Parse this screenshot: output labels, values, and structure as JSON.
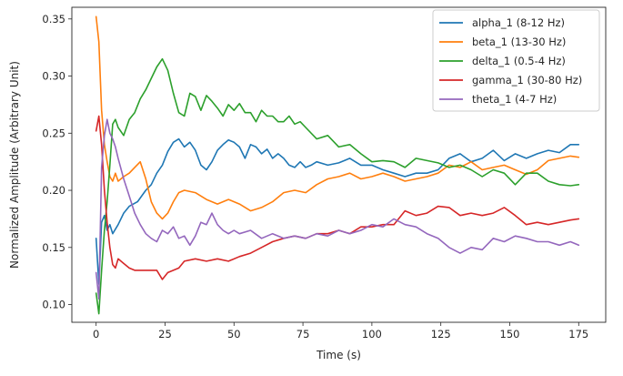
{
  "chart_data": {
    "type": "line",
    "title": "",
    "xlabel": "Time (s)",
    "ylabel": "Normalized Amplitude (Arbitrary Unit)",
    "xlim": [
      -8.8,
      184.8
    ],
    "ylim": [
      0.0845,
      0.3602
    ],
    "xticks": [
      0,
      25,
      50,
      75,
      100,
      125,
      150,
      175
    ],
    "yticks": [
      0.1,
      0.15,
      0.2,
      0.25,
      0.3,
      0.35
    ],
    "xtick_labels": [
      "0",
      "25",
      "50",
      "75",
      "100",
      "125",
      "150",
      "175"
    ],
    "ytick_labels": [
      "0.10",
      "0.15",
      "0.20",
      "0.25",
      "0.30",
      "0.35"
    ],
    "grid": false,
    "legend_position": "top-right",
    "series": [
      {
        "name": "alpha_1 (8-12 Hz)",
        "color": "#1f77b4",
        "x": [
          0,
          1,
          2,
          3,
          4,
          5,
          6,
          8,
          10,
          12,
          15,
          18,
          20,
          22,
          24,
          26,
          28,
          30,
          32,
          34,
          36,
          38,
          40,
          42,
          44,
          46,
          48,
          50,
          52,
          54,
          56,
          58,
          60,
          62,
          64,
          66,
          68,
          70,
          72,
          74,
          76,
          78,
          80,
          84,
          88,
          92,
          96,
          100,
          104,
          108,
          112,
          116,
          120,
          124,
          128,
          132,
          136,
          140,
          144,
          148,
          152,
          156,
          160,
          164,
          168,
          172,
          175
        ],
        "y": [
          0.158,
          0.118,
          0.172,
          0.178,
          0.165,
          0.17,
          0.162,
          0.17,
          0.18,
          0.186,
          0.19,
          0.2,
          0.205,
          0.215,
          0.222,
          0.234,
          0.242,
          0.245,
          0.238,
          0.242,
          0.235,
          0.222,
          0.218,
          0.225,
          0.235,
          0.24,
          0.244,
          0.242,
          0.238,
          0.228,
          0.24,
          0.238,
          0.232,
          0.236,
          0.228,
          0.232,
          0.228,
          0.222,
          0.22,
          0.225,
          0.22,
          0.222,
          0.225,
          0.222,
          0.224,
          0.228,
          0.222,
          0.222,
          0.218,
          0.215,
          0.212,
          0.215,
          0.215,
          0.218,
          0.228,
          0.232,
          0.225,
          0.228,
          0.235,
          0.226,
          0.232,
          0.228,
          0.232,
          0.235,
          0.233,
          0.24,
          0.24
        ]
      },
      {
        "name": "beta_1 (13-30 Hz)",
        "color": "#ff7f0e",
        "x": [
          0,
          1,
          2,
          3,
          4,
          5,
          6,
          7,
          8,
          10,
          12,
          14,
          16,
          18,
          20,
          22,
          24,
          26,
          28,
          30,
          32,
          36,
          40,
          44,
          48,
          52,
          56,
          60,
          64,
          68,
          72,
          76,
          80,
          84,
          88,
          92,
          96,
          100,
          104,
          108,
          112,
          116,
          120,
          124,
          128,
          132,
          136,
          140,
          144,
          148,
          152,
          156,
          160,
          164,
          168,
          172,
          175
        ],
        "y": [
          0.352,
          0.33,
          0.27,
          0.24,
          0.225,
          0.212,
          0.208,
          0.215,
          0.208,
          0.212,
          0.215,
          0.22,
          0.225,
          0.21,
          0.19,
          0.18,
          0.175,
          0.18,
          0.19,
          0.198,
          0.2,
          0.198,
          0.192,
          0.188,
          0.192,
          0.188,
          0.182,
          0.185,
          0.19,
          0.198,
          0.2,
          0.198,
          0.205,
          0.21,
          0.212,
          0.215,
          0.21,
          0.212,
          0.215,
          0.212,
          0.208,
          0.21,
          0.212,
          0.215,
          0.222,
          0.22,
          0.225,
          0.218,
          0.22,
          0.222,
          0.218,
          0.214,
          0.218,
          0.226,
          0.228,
          0.23,
          0.229
        ]
      },
      {
        "name": "delta_1 (0.5-4 Hz)",
        "color": "#2ca02c",
        "x": [
          0,
          1,
          2,
          3,
          4,
          5,
          6,
          7,
          8,
          10,
          12,
          14,
          16,
          18,
          20,
          22,
          24,
          26,
          28,
          30,
          32,
          34,
          36,
          38,
          40,
          42,
          44,
          46,
          48,
          50,
          52,
          54,
          56,
          58,
          60,
          62,
          64,
          66,
          68,
          70,
          72,
          74,
          76,
          80,
          84,
          88,
          92,
          96,
          100,
          104,
          108,
          112,
          116,
          120,
          124,
          128,
          132,
          136,
          140,
          144,
          148,
          152,
          156,
          160,
          164,
          168,
          172,
          175
        ],
        "y": [
          0.11,
          0.092,
          0.13,
          0.165,
          0.19,
          0.222,
          0.258,
          0.262,
          0.255,
          0.248,
          0.262,
          0.268,
          0.28,
          0.288,
          0.298,
          0.308,
          0.315,
          0.305,
          0.285,
          0.268,
          0.265,
          0.285,
          0.282,
          0.27,
          0.283,
          0.278,
          0.272,
          0.265,
          0.275,
          0.27,
          0.276,
          0.268,
          0.268,
          0.26,
          0.27,
          0.265,
          0.265,
          0.26,
          0.26,
          0.265,
          0.258,
          0.26,
          0.255,
          0.245,
          0.248,
          0.238,
          0.24,
          0.232,
          0.225,
          0.226,
          0.225,
          0.22,
          0.228,
          0.226,
          0.224,
          0.22,
          0.222,
          0.218,
          0.212,
          0.218,
          0.215,
          0.205,
          0.215,
          0.215,
          0.208,
          0.205,
          0.204,
          0.205
        ]
      },
      {
        "name": "gamma_1 (30-80 Hz)",
        "color": "#d62728",
        "x": [
          0,
          1,
          2,
          3,
          4,
          5,
          6,
          7,
          8,
          10,
          12,
          14,
          16,
          18,
          20,
          22,
          24,
          26,
          28,
          30,
          32,
          36,
          40,
          44,
          48,
          52,
          56,
          60,
          64,
          68,
          72,
          76,
          80,
          84,
          88,
          92,
          96,
          100,
          104,
          108,
          112,
          116,
          120,
          124,
          128,
          132,
          136,
          140,
          144,
          148,
          152,
          156,
          160,
          164,
          168,
          172,
          175
        ],
        "y": [
          0.252,
          0.265,
          0.24,
          0.2,
          0.172,
          0.15,
          0.135,
          0.132,
          0.14,
          0.136,
          0.132,
          0.13,
          0.13,
          0.13,
          0.13,
          0.13,
          0.122,
          0.128,
          0.13,
          0.132,
          0.138,
          0.14,
          0.138,
          0.14,
          0.138,
          0.142,
          0.145,
          0.15,
          0.155,
          0.158,
          0.16,
          0.158,
          0.162,
          0.162,
          0.165,
          0.162,
          0.168,
          0.168,
          0.17,
          0.17,
          0.182,
          0.178,
          0.18,
          0.186,
          0.185,
          0.178,
          0.18,
          0.178,
          0.18,
          0.185,
          0.178,
          0.17,
          0.172,
          0.17,
          0.172,
          0.174,
          0.175
        ]
      },
      {
        "name": "theta_1 (4-7 Hz)",
        "color": "#9467bd",
        "x": [
          0,
          1,
          2,
          3,
          4,
          5,
          6,
          7,
          8,
          10,
          12,
          14,
          16,
          18,
          20,
          22,
          24,
          26,
          28,
          30,
          32,
          34,
          36,
          38,
          40,
          42,
          44,
          46,
          48,
          50,
          52,
          56,
          60,
          64,
          68,
          72,
          76,
          80,
          84,
          88,
          92,
          96,
          100,
          104,
          108,
          112,
          116,
          120,
          124,
          128,
          132,
          136,
          140,
          144,
          148,
          152,
          156,
          160,
          164,
          168,
          172,
          175
        ],
        "y": [
          0.128,
          0.105,
          0.22,
          0.248,
          0.262,
          0.25,
          0.245,
          0.238,
          0.228,
          0.21,
          0.195,
          0.18,
          0.17,
          0.162,
          0.158,
          0.155,
          0.165,
          0.162,
          0.168,
          0.158,
          0.16,
          0.152,
          0.16,
          0.172,
          0.17,
          0.18,
          0.17,
          0.165,
          0.162,
          0.165,
          0.162,
          0.165,
          0.158,
          0.162,
          0.158,
          0.16,
          0.158,
          0.162,
          0.16,
          0.165,
          0.162,
          0.165,
          0.17,
          0.168,
          0.175,
          0.17,
          0.168,
          0.162,
          0.158,
          0.15,
          0.145,
          0.15,
          0.148,
          0.158,
          0.155,
          0.16,
          0.158,
          0.155,
          0.155,
          0.152,
          0.155,
          0.152
        ]
      }
    ]
  }
}
